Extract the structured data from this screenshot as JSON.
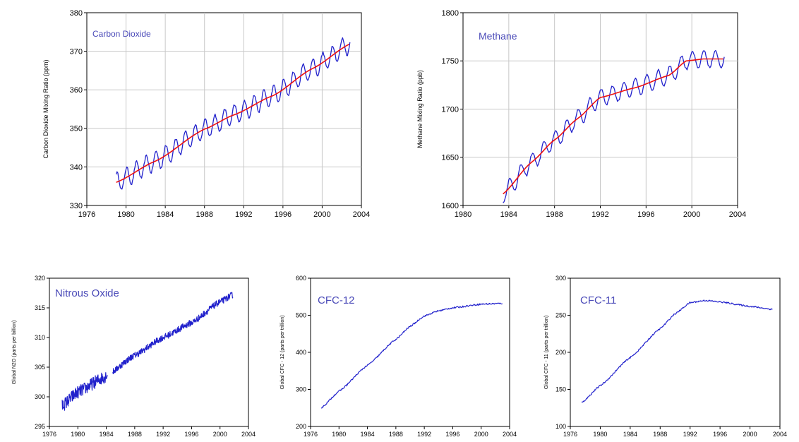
{
  "colors": {
    "series_blue": "#2222cc",
    "trend_red": "#ee1111",
    "title_blue": "#4a4ab8",
    "grid": "#c8c8c8"
  },
  "chart_data": [
    {
      "id": "co2",
      "type": "line",
      "title": "Carbon Dioxide",
      "xlabel": "",
      "ylabel": "Carbon Dioxide Mixing Ratio (ppm)",
      "xlim": [
        1976,
        2004
      ],
      "ylim": [
        330,
        380
      ],
      "xticks": [
        1976,
        1980,
        1984,
        1988,
        1992,
        1996,
        2000,
        2004
      ],
      "yticks": [
        330,
        340,
        350,
        360,
        370,
        380
      ],
      "grid": true,
      "series": [
        {
          "style": "monthly-seasonal",
          "color": "#2222cc",
          "x_start": 1979.0,
          "x_end": 2002.9,
          "seasonal_amplitude": 2.5,
          "trend": {
            "x": [
              1979.0,
              1983.0,
              1988.0,
              1991.0,
              1995.0,
              1999.0,
              2002.9
            ],
            "y": [
              336.0,
              341.5,
              349.8,
              353.5,
              358.5,
              365.5,
              372.0
            ]
          }
        },
        {
          "style": "trend",
          "color": "#ee1111",
          "x": [
            1979.0,
            1983.0,
            1988.0,
            1991.0,
            1995.0,
            1999.0,
            2002.9
          ],
          "y": [
            336.0,
            341.5,
            349.8,
            353.5,
            358.5,
            365.5,
            372.0
          ]
        }
      ]
    },
    {
      "id": "ch4",
      "type": "line",
      "title": "Methane",
      "xlabel": "",
      "ylabel": "Methane Mixing Ratio (ppb)",
      "xlim": [
        1980,
        2004
      ],
      "ylim": [
        1600,
        1800
      ],
      "xticks": [
        1980,
        1984,
        1988,
        1992,
        1996,
        2000,
        2004
      ],
      "yticks": [
        1600,
        1650,
        1700,
        1750,
        1800
      ],
      "grid": true,
      "series": [
        {
          "style": "monthly-seasonal",
          "color": "#2222cc",
          "x_start": 1983.5,
          "x_end": 2002.9,
          "seasonal_amplitude": 9,
          "trend": {
            "x": [
              1983.5,
              1986.0,
              1988.0,
              1990.0,
              1992.0,
              1995.0,
              1998.0,
              1999.5,
              2001.0,
              2002.9
            ],
            "y": [
              1612,
              1645,
              1668,
              1690,
              1712,
              1722,
              1735,
              1750,
              1752,
              1752
            ]
          }
        },
        {
          "style": "trend",
          "color": "#ee1111",
          "x": [
            1983.5,
            1986.0,
            1988.0,
            1990.0,
            1992.0,
            1995.0,
            1998.0,
            1999.5,
            2001.0,
            2002.9
          ],
          "y": [
            1612,
            1645,
            1668,
            1690,
            1712,
            1722,
            1735,
            1750,
            1752,
            1752
          ]
        }
      ]
    },
    {
      "id": "n2o",
      "type": "line",
      "title": "Nitrous Oxide",
      "xlabel": "",
      "ylabel": "Global N2O (parts per billion)",
      "xlim": [
        1976,
        2004
      ],
      "ylim": [
        295,
        320
      ],
      "xticks": [
        1976,
        1980,
        1984,
        1988,
        1992,
        1996,
        2000,
        2004
      ],
      "yticks": [
        295,
        300,
        305,
        310,
        315,
        320
      ],
      "grid": false,
      "series": [
        {
          "style": "noisy",
          "color": "#2222cc",
          "x": [
            1977.8,
            1980.0,
            1984.0,
            1988.0,
            1992.0,
            1996.0,
            2000.0,
            2001.8
          ],
          "y": [
            298.5,
            300.8,
            303.5,
            307.0,
            310.0,
            312.5,
            316.0,
            317.2
          ],
          "noise": 0.9,
          "gap": [
            1984.2,
            1984.9
          ]
        }
      ]
    },
    {
      "id": "cfc12",
      "type": "line",
      "title": "CFC-12",
      "xlabel": "",
      "ylabel": "Global CFC - 12 (parts per trillion)",
      "xlim": [
        1976,
        2004
      ],
      "ylim": [
        200,
        600
      ],
      "xticks": [
        1976,
        1980,
        1984,
        1988,
        1992,
        1996,
        2000,
        2004
      ],
      "yticks": [
        200,
        300,
        400,
        500,
        600
      ],
      "grid": false,
      "series": [
        {
          "style": "smooth",
          "color": "#2222cc",
          "x": [
            1977.5,
            1980.0,
            1984.0,
            1988.0,
            1990.0,
            1992.0,
            1994.0,
            1996.0,
            2000.0,
            2003.0
          ],
          "y": [
            250,
            295,
            365,
            435,
            470,
            498,
            512,
            520,
            530,
            532
          ],
          "noise": 2
        }
      ]
    },
    {
      "id": "cfc11",
      "type": "line",
      "title": "CFC-11",
      "xlabel": "",
      "ylabel": "Global CFC - 11 (parts per trillion)",
      "xlim": [
        1976,
        2004
      ],
      "ylim": [
        100,
        300
      ],
      "xticks": [
        1976,
        1980,
        1984,
        1988,
        1992,
        1996,
        2000,
        2004
      ],
      "yticks": [
        100,
        150,
        200,
        250,
        300
      ],
      "grid": false,
      "series": [
        {
          "style": "smooth",
          "color": "#2222cc",
          "x": [
            1977.5,
            1980.0,
            1984.0,
            1988.0,
            1990.0,
            1992.0,
            1994.0,
            1996.0,
            2000.0,
            2003.0
          ],
          "y": [
            132,
            155,
            193,
            232,
            252,
            267,
            270,
            268,
            262,
            258
          ],
          "noise": 1
        }
      ]
    }
  ]
}
